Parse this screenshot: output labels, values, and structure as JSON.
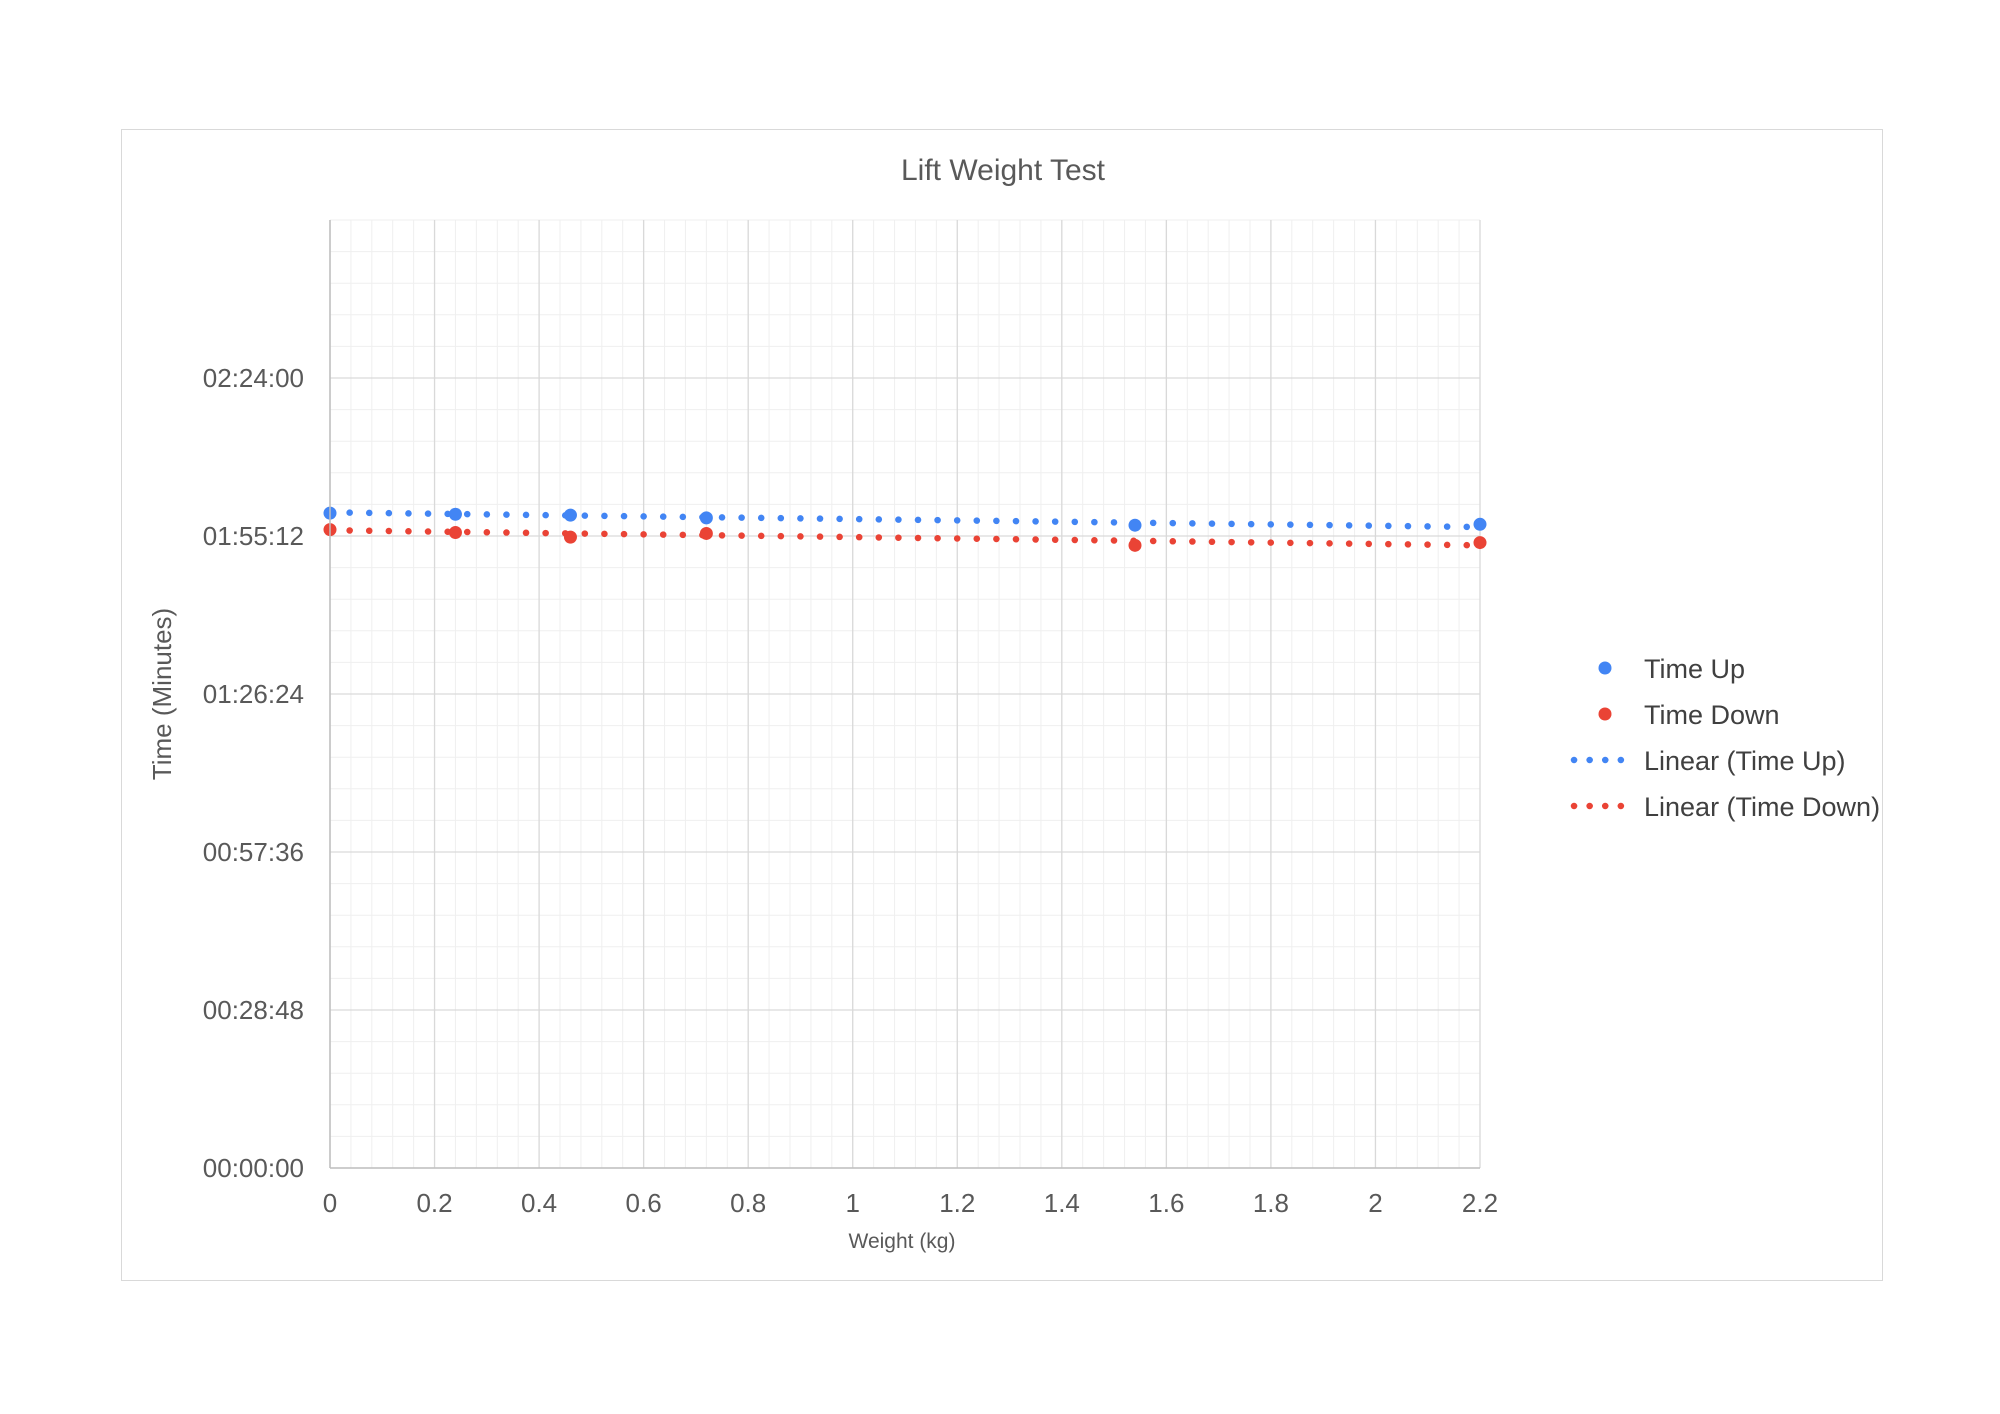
{
  "chart_data": {
    "type": "scatter",
    "title": "Lift Weight Test",
    "xlabel": "Weight (kg)",
    "ylabel": "Time (Minutes)",
    "xlim": [
      0,
      2.2
    ],
    "ylim": [
      0,
      10368
    ],
    "x_ticks": [
      "0",
      "0.2",
      "0.4",
      "0.6",
      "0.8",
      "1",
      "1.2",
      "1.4",
      "1.6",
      "1.8",
      "2",
      "2.2"
    ],
    "y_ticks": [
      "00:00:00",
      "00:28:48",
      "00:57:36",
      "01:26:24",
      "01:55:12",
      "02:24:00"
    ],
    "y_unit": "seconds",
    "grid": true,
    "legend_position": "right",
    "series": [
      {
        "name": "Time Up",
        "color": "#4285f4",
        "x": [
          0,
          0.24,
          0.46,
          0.72,
          1.54,
          2.2
        ],
        "y": [
          7162,
          7150,
          7140,
          7110,
          7030,
          7040
        ]
      },
      {
        "name": "Time Down",
        "color": "#ea4335",
        "x": [
          0,
          0.24,
          0.46,
          0.72,
          1.54,
          2.2
        ],
        "y": [
          6982,
          6950,
          6900,
          6940,
          6810,
          6840
        ]
      }
    ],
    "trendlines": [
      {
        "name": "Linear (Time Up)",
        "color": "#4285f4",
        "style": "dotted",
        "x": [
          0,
          2.2
        ],
        "y": [
          7170,
          7010
        ]
      },
      {
        "name": "Linear (Time Down)",
        "color": "#ea4335",
        "style": "dotted",
        "x": [
          0,
          2.2
        ],
        "y": [
          6975,
          6810
        ]
      }
    ]
  }
}
